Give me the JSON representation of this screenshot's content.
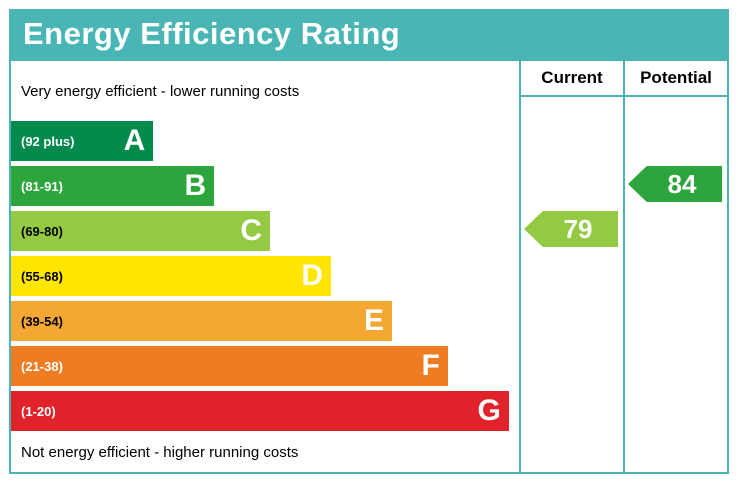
{
  "title": "Energy Efficiency Rating",
  "columns": {
    "current": "Current",
    "potential": "Potential"
  },
  "top_note": "Very energy efficient - lower running costs",
  "bottom_note": "Not energy efficient - higher running costs",
  "colors": {
    "frame": "#4ab5b5",
    "title_text": "#ffffff",
    "header_text": "#000000"
  },
  "chart_data": {
    "type": "bar",
    "title": "Energy Efficiency Rating",
    "bands": [
      {
        "letter": "A",
        "range": "(92 plus)",
        "color": "#028a4d",
        "width_pct": 28,
        "range_color": "#ffffff",
        "letter_color": "#ffffff"
      },
      {
        "letter": "B",
        "range": "(81-91)",
        "color": "#2ba53c",
        "width_pct": 40,
        "range_color": "#ffffff",
        "letter_color": "#ffffff"
      },
      {
        "letter": "C",
        "range": "(69-80)",
        "color": "#94ca43",
        "width_pct": 51,
        "range_color": "#000000",
        "letter_color": "#ffffff"
      },
      {
        "letter": "D",
        "range": "(55-68)",
        "color": "#ffe500",
        "width_pct": 63,
        "range_color": "#000000",
        "letter_color": "#ffffff"
      },
      {
        "letter": "E",
        "range": "(39-54)",
        "color": "#f4a733",
        "width_pct": 75,
        "range_color": "#000000",
        "letter_color": "#ffffff"
      },
      {
        "letter": "F",
        "range": "(21-38)",
        "color": "#ee7c23",
        "width_pct": 86,
        "range_color": "#ffffff",
        "letter_color": "#ffffff"
      },
      {
        "letter": "G",
        "range": "(1-20)",
        "color": "#e1222b",
        "width_pct": 98,
        "range_color": "#ffffff",
        "letter_color": "#ffffff"
      }
    ],
    "current": {
      "value": 79,
      "band": "C",
      "row_index": 2,
      "color": "#94ca43"
    },
    "potential": {
      "value": 84,
      "band": "B",
      "row_index": 1,
      "color": "#2ba53c"
    },
    "legend_position": "top-right-columns",
    "grid": false
  }
}
